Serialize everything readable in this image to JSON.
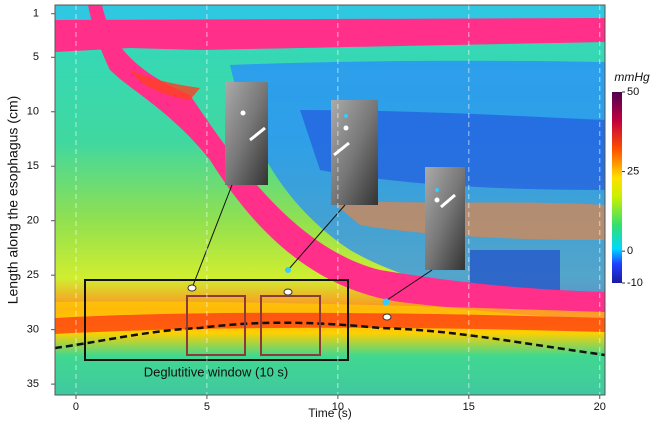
{
  "chart_data": {
    "type": "heatmap",
    "x_label": "Time (s)",
    "y_label": "Length along the esophagus (cm)",
    "xlim": [
      -0.8,
      20.2
    ],
    "xticks": [
      0,
      5,
      10,
      15,
      20
    ],
    "ylim": [
      0.2,
      36
    ],
    "y_inverted": true,
    "yticks": [
      1,
      5,
      10,
      15,
      20,
      25,
      30,
      35
    ],
    "grid": true,
    "colorbar": {
      "label": "mmHg",
      "lim": [
        -10,
        50
      ],
      "ticks": [
        -10,
        0,
        25,
        50
      ]
    },
    "annotation": "Deglutitive window (10 s)"
  }
}
